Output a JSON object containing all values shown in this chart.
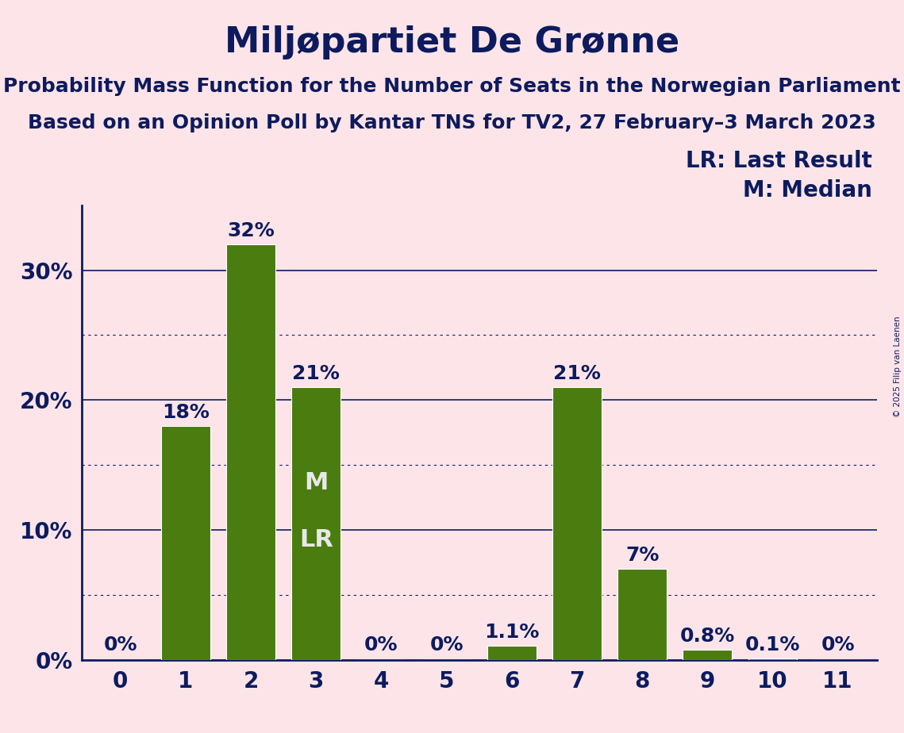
{
  "title": "Miljøpartiet De Grønne",
  "subtitle1": "Probability Mass Function for the Number of Seats in the Norwegian Parliament",
  "subtitle2": "Based on an Opinion Poll by Kantar TNS for TV2, 27 February–3 March 2023",
  "categories": [
    0,
    1,
    2,
    3,
    4,
    5,
    6,
    7,
    8,
    9,
    10,
    11
  ],
  "values": [
    0.0,
    18.0,
    32.0,
    21.0,
    0.0,
    0.0,
    1.1,
    21.0,
    7.0,
    0.8,
    0.1,
    0.0
  ],
  "bar_labels": [
    "0%",
    "18%",
    "32%",
    "21%",
    "0%",
    "0%",
    "1.1%",
    "21%",
    "7%",
    "0.8%",
    "0.1%",
    "0%"
  ],
  "bar_color": "#4a7c10",
  "background_color": "#fce4e8",
  "title_color": "#0d1b5e",
  "axis_color": "#0d1b5e",
  "grid_color": "#0d1b5e",
  "bar_label_color": "#0d1b5e",
  "median_bar": 3,
  "median_label": "M",
  "lr_label": "LR",
  "legend_lr": "LR: Last Result",
  "legend_m": "M: Median",
  "copyright": "© 2025 Filip van Laenen",
  "ylim": [
    0,
    35
  ],
  "yticks": [
    0,
    10,
    20,
    30
  ],
  "ytick_labels": [
    "0%",
    "10%",
    "20%",
    "30%"
  ],
  "title_fontsize": 32,
  "subtitle_fontsize": 18,
  "tick_fontsize": 20,
  "bar_label_fontsize": 18,
  "legend_fontsize": 20,
  "inner_label_fontsize": 22,
  "inner_label_color": "#e8e8e8"
}
